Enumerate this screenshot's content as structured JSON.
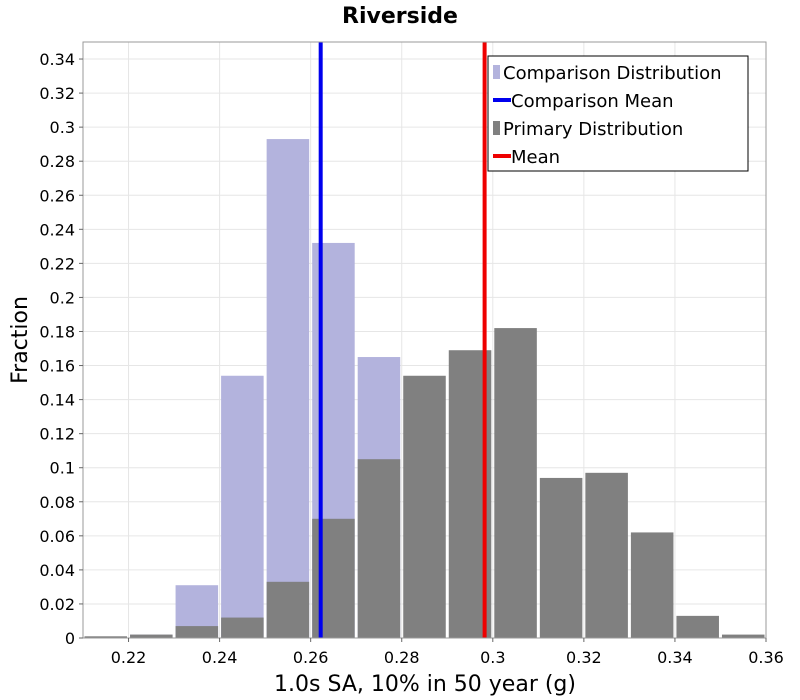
{
  "chart_data": {
    "type": "bar",
    "title": "Riverside",
    "xlabel": "1.0s SA, 10% in 50 year (g)",
    "ylabel": "Fraction",
    "xlim": [
      0.21,
      0.36
    ],
    "ylim": [
      0,
      0.35
    ],
    "xticks": [
      "0.22",
      "0.24",
      "0.26",
      "0.28",
      "0.3",
      "0.32",
      "0.34",
      "0.36"
    ],
    "yticks": [
      "0",
      "0.02",
      "0.04",
      "0.06",
      "0.08",
      "0.1",
      "0.12",
      "0.14",
      "0.16",
      "0.18",
      "0.2",
      "0.22",
      "0.24",
      "0.26",
      "0.28",
      "0.3",
      "0.32",
      "0.34"
    ],
    "grid": true,
    "legend_position": "top-right",
    "bin_width": 0.01,
    "series": [
      {
        "name": "Comparison Distribution",
        "color": "#b3b3dd",
        "bin_starts": [
          0.21,
          0.22,
          0.23,
          0.24,
          0.25,
          0.26,
          0.27
        ],
        "values": [
          0.0,
          0.002,
          0.031,
          0.154,
          0.293,
          0.232,
          0.165
        ]
      },
      {
        "name": "Primary Distribution",
        "color": "#808080",
        "bin_starts": [
          0.21,
          0.22,
          0.23,
          0.24,
          0.25,
          0.26,
          0.27,
          0.28,
          0.29,
          0.3,
          0.31,
          0.32,
          0.33,
          0.34,
          0.35
        ],
        "values": [
          0.001,
          0.002,
          0.007,
          0.012,
          0.033,
          0.07,
          0.105,
          0.154,
          0.169,
          0.182,
          0.094,
          0.097,
          0.062,
          0.013,
          0.002
        ]
      }
    ],
    "lines": [
      {
        "name": "Comparison Mean",
        "x": 0.2622,
        "color": "#0000ee"
      },
      {
        "name": "Mean",
        "x": 0.2982,
        "color": "#ee0000"
      }
    ],
    "legend": [
      {
        "label": "Comparison Distribution",
        "kind": "box",
        "color": "#b3b3dd"
      },
      {
        "label": "Comparison Mean",
        "kind": "line",
        "color": "#0000ee"
      },
      {
        "label": "Primary Distribution",
        "kind": "box",
        "color": "#808080"
      },
      {
        "label": "Mean",
        "kind": "line",
        "color": "#ee0000"
      }
    ]
  }
}
